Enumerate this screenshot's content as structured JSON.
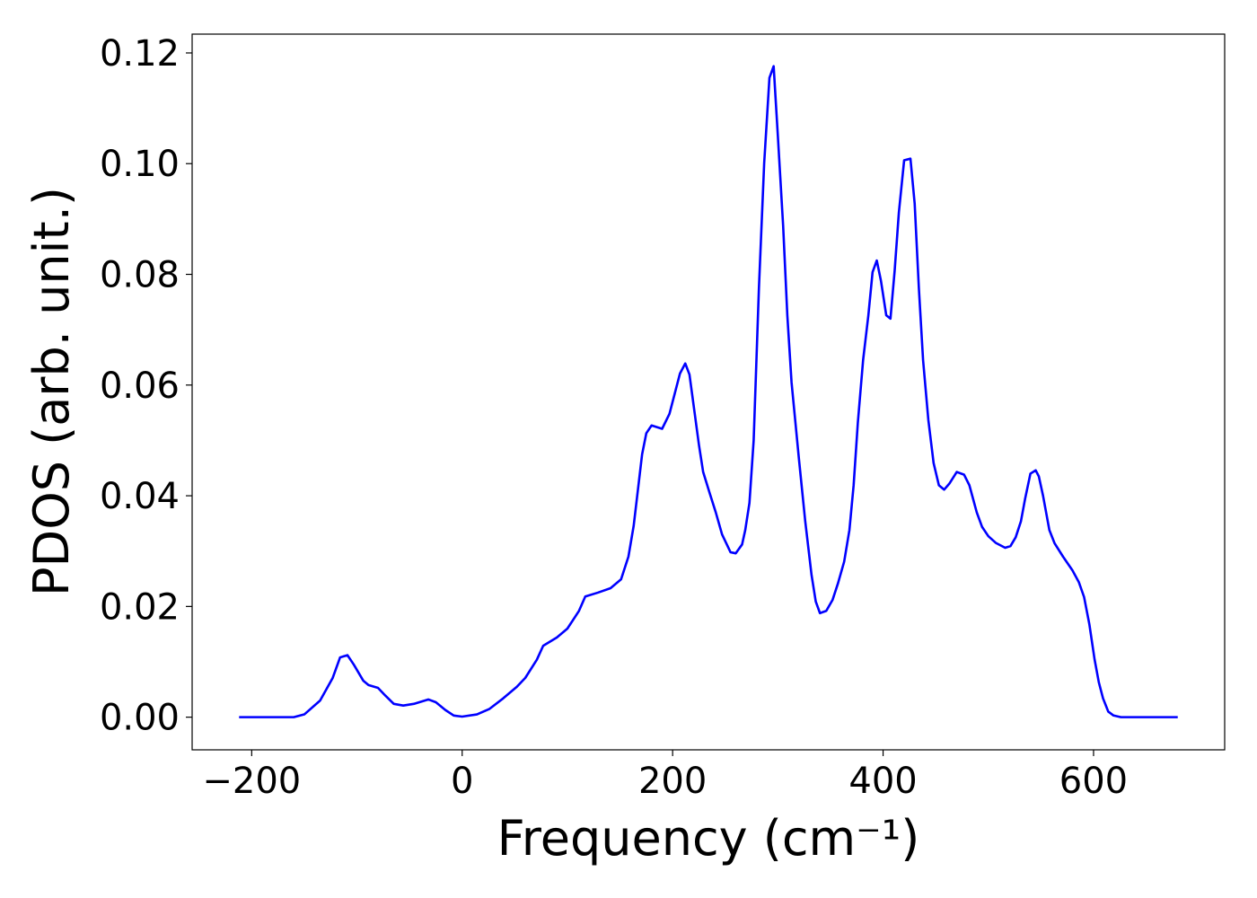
{
  "chart_data": {
    "type": "line",
    "xlabel": "Frequency (cm⁻¹)",
    "ylabel": "PDOS (arb. unit.)",
    "xlim": [
      -256.6,
      724.6
    ],
    "ylim": [
      -0.0059,
      0.1234
    ],
    "xticks": [
      {
        "value": -200,
        "label": "−200"
      },
      0,
      200,
      400,
      600
    ],
    "yticks": [
      {
        "value": 0,
        "label": "0.00"
      },
      {
        "value": 0.02,
        "label": "0.02"
      },
      {
        "value": 0.04,
        "label": "0.04"
      },
      {
        "value": 0.06,
        "label": "0.06"
      },
      {
        "value": 0.08,
        "label": "0.08"
      },
      {
        "value": 0.1,
        "label": "0.10"
      },
      {
        "value": 0.12,
        "label": "0.12"
      }
    ],
    "x": [
      -212,
      -160,
      -150,
      -135,
      -123,
      -116,
      -109,
      -103,
      -94,
      -89,
      -80,
      -73,
      -65,
      -56,
      -46,
      -32,
      -25,
      -16,
      -8,
      0,
      14,
      26,
      39,
      52,
      60,
      71,
      77,
      90,
      100,
      111,
      117,
      129,
      141,
      151,
      158,
      163,
      171,
      175,
      180,
      190,
      197,
      207,
      212,
      216,
      225,
      229,
      235,
      241,
      247,
      255,
      260,
      266,
      269,
      273,
      277,
      282,
      287,
      292,
      296,
      300,
      305,
      309,
      313,
      320,
      326,
      332,
      336,
      340,
      346,
      352,
      357,
      363,
      368,
      372,
      376,
      381,
      386,
      390,
      394,
      398,
      403,
      407,
      411,
      415,
      420,
      426,
      430,
      434,
      438,
      443,
      448,
      453,
      458,
      463,
      470,
      477,
      482,
      489,
      494,
      500,
      507,
      516,
      521,
      526,
      531,
      535,
      540,
      545,
      548,
      552,
      558,
      563,
      571,
      580,
      586,
      591,
      596,
      601,
      605,
      609,
      614,
      619,
      626,
      680
    ],
    "series": [
      {
        "color": "#0000ff",
        "values": [
          0,
          0,
          0.0005,
          0.003,
          0.0071,
          0.0108,
          0.0112,
          0.0095,
          0.0066,
          0.0058,
          0.0053,
          0.0039,
          0.0024,
          0.0021,
          0.0024,
          0.0032,
          0.0027,
          0.0013,
          0.0003,
          0.0001,
          0.0005,
          0.0015,
          0.0034,
          0.0055,
          0.0071,
          0.0104,
          0.0129,
          0.0144,
          0.016,
          0.0192,
          0.0218,
          0.0225,
          0.0233,
          0.0249,
          0.029,
          0.0346,
          0.0475,
          0.0513,
          0.0527,
          0.0521,
          0.0548,
          0.0621,
          0.0639,
          0.0619,
          0.0492,
          0.0443,
          0.0406,
          0.037,
          0.033,
          0.0298,
          0.0296,
          0.0312,
          0.0338,
          0.0387,
          0.05,
          0.0775,
          0.1001,
          0.1155,
          0.1176,
          0.105,
          0.0888,
          0.0726,
          0.0605,
          0.0467,
          0.0354,
          0.0257,
          0.0209,
          0.0188,
          0.0192,
          0.0212,
          0.0241,
          0.0281,
          0.0338,
          0.0419,
          0.0532,
          0.0645,
          0.0726,
          0.0804,
          0.0825,
          0.0788,
          0.0726,
          0.072,
          0.0807,
          0.0912,
          0.1006,
          0.1009,
          0.0928,
          0.0775,
          0.0645,
          0.0537,
          0.0459,
          0.0419,
          0.0411,
          0.0422,
          0.0443,
          0.0438,
          0.0419,
          0.037,
          0.0344,
          0.0327,
          0.0315,
          0.0306,
          0.0309,
          0.0325,
          0.0354,
          0.0395,
          0.044,
          0.0446,
          0.0435,
          0.04,
          0.0338,
          0.0314,
          0.029,
          0.0265,
          0.0244,
          0.0217,
          0.0168,
          0.0104,
          0.0063,
          0.0034,
          0.001,
          0.0003,
          0,
          0
        ]
      }
    ]
  }
}
